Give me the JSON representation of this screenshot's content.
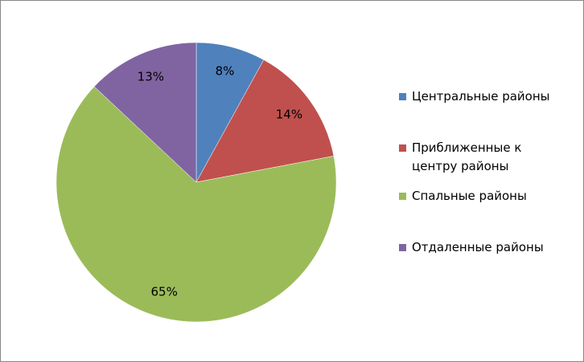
{
  "chart_data": {
    "type": "pie",
    "categories": [
      "Центральные районы",
      "Приближенные к центру районы",
      "Спальные районы",
      "Отдаленные районы"
    ],
    "values": [
      8,
      14,
      65,
      13
    ],
    "value_labels": [
      "8%",
      "14%",
      "65%",
      "13%"
    ],
    "colors": [
      "#4f81bd",
      "#c0504d",
      "#9bbb59",
      "#8064a2"
    ],
    "legend": "right"
  }
}
